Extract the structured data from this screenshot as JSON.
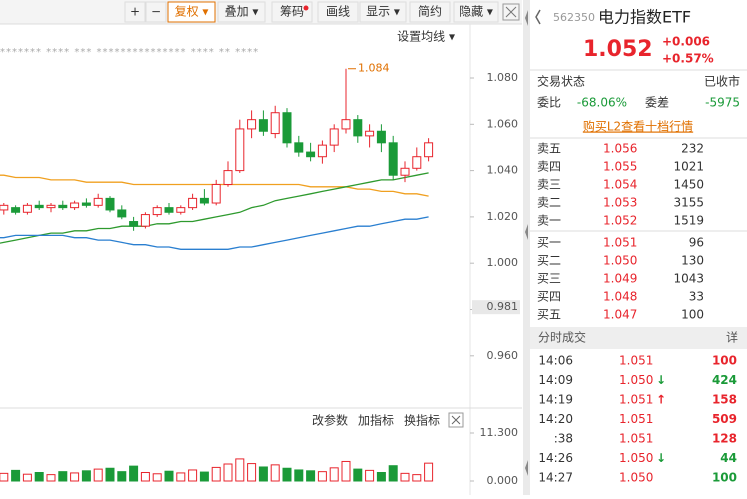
{
  "toolbar": {
    "buttons": [
      "+",
      "−",
      "复权 ▾",
      "叠加 ▾",
      "筹码",
      "画线",
      "显示 ▾",
      "简约",
      "隐藏 ▾"
    ]
  },
  "chart_data": {
    "type": "candlestick",
    "ma_menu": "设置均线 ▾",
    "event_markers": "******* **** *** *************** **** ** ****",
    "ylim": [
      0.951,
      1.089
    ],
    "yticks": [
      {
        "value": 1.08,
        "label": "1.080"
      },
      {
        "value": 1.06,
        "label": "1.060"
      },
      {
        "value": 1.04,
        "label": "1.040"
      },
      {
        "value": 1.02,
        "label": "1.020"
      },
      {
        "value": 1.0,
        "label": "1.000"
      },
      {
        "value": 0.98,
        "label": "0.980"
      },
      {
        "value": 0.96,
        "label": "0.960"
      }
    ],
    "cursor_label": {
      "value": 0.981,
      "label": "0.981"
    },
    "high_marker": {
      "value": 1.084,
      "label": "1.084"
    },
    "up_color": "#e8242c",
    "down_color": "#1a9a38",
    "open": [
      1.024,
      1.023,
      1.024,
      1.022,
      1.025,
      1.024,
      1.025,
      1.024,
      1.026,
      1.025,
      1.028,
      1.023,
      1.018,
      1.016,
      1.021,
      1.024,
      1.022,
      1.024,
      1.028,
      1.026,
      1.034,
      1.04,
      1.058,
      1.062,
      1.056,
      1.065,
      1.052,
      1.048,
      1.046,
      1.051,
      1.058,
      1.062,
      1.055,
      1.057,
      1.052,
      1.038,
      1.041,
      1.046
    ],
    "high": [
      1.027,
      1.026,
      1.025,
      1.026,
      1.027,
      1.026,
      1.027,
      1.027,
      1.028,
      1.03,
      1.029,
      1.025,
      1.02,
      1.022,
      1.025,
      1.026,
      1.025,
      1.03,
      1.032,
      1.036,
      1.044,
      1.062,
      1.066,
      1.066,
      1.068,
      1.067,
      1.055,
      1.052,
      1.053,
      1.06,
      1.084,
      1.064,
      1.06,
      1.06,
      1.055,
      1.044,
      1.05,
      1.054
    ],
    "low": [
      1.021,
      1.021,
      1.021,
      1.021,
      1.023,
      1.022,
      1.023,
      1.023,
      1.024,
      1.024,
      1.022,
      1.019,
      1.014,
      1.015,
      1.02,
      1.021,
      1.021,
      1.023,
      1.025,
      1.025,
      1.033,
      1.039,
      1.054,
      1.055,
      1.054,
      1.05,
      1.046,
      1.044,
      1.043,
      1.048,
      1.056,
      1.052,
      1.05,
      1.048,
      1.036,
      1.035,
      1.04,
      1.044
    ],
    "close": [
      1.023,
      1.025,
      1.022,
      1.025,
      1.024,
      1.025,
      1.024,
      1.026,
      1.025,
      1.028,
      1.023,
      1.02,
      1.016,
      1.021,
      1.024,
      1.022,
      1.024,
      1.028,
      1.026,
      1.034,
      1.04,
      1.058,
      1.062,
      1.057,
      1.065,
      1.052,
      1.048,
      1.046,
      1.051,
      1.058,
      1.062,
      1.055,
      1.057,
      1.052,
      1.038,
      1.041,
      1.046,
      1.052
    ],
    "series": [
      {
        "color": "#f0a020",
        "values": [
          1.038,
          1.038,
          1.037,
          1.037,
          1.037,
          1.036,
          1.036,
          1.036,
          1.035,
          1.035,
          1.035,
          1.035,
          1.034,
          1.034,
          1.034,
          1.034,
          1.034,
          1.034,
          1.034,
          1.034,
          1.034,
          1.034,
          1.034,
          1.034,
          1.034,
          1.034,
          1.034,
          1.033,
          1.033,
          1.033,
          1.033,
          1.032,
          1.032,
          1.031,
          1.031,
          1.03,
          1.03,
          1.029
        ]
      },
      {
        "color": "#2e9a2e",
        "values": [
          1.008,
          1.009,
          1.01,
          1.011,
          1.012,
          1.013,
          1.013,
          1.014,
          1.014,
          1.015,
          1.015,
          1.016,
          1.016,
          1.016,
          1.017,
          1.017,
          1.018,
          1.018,
          1.019,
          1.02,
          1.021,
          1.022,
          1.024,
          1.025,
          1.027,
          1.028,
          1.029,
          1.03,
          1.031,
          1.032,
          1.033,
          1.034,
          1.035,
          1.036,
          1.036,
          1.037,
          1.038,
          1.039
        ]
      },
      {
        "color": "#2a7fd0",
        "values": [
          1.011,
          1.011,
          1.012,
          1.012,
          1.012,
          1.012,
          1.012,
          1.011,
          1.011,
          1.01,
          1.01,
          1.009,
          1.008,
          1.008,
          1.007,
          1.007,
          1.006,
          1.006,
          1.006,
          1.006,
          1.006,
          1.007,
          1.007,
          1.008,
          1.009,
          1.01,
          1.011,
          1.012,
          1.013,
          1.014,
          1.015,
          1.016,
          1.016,
          1.017,
          1.018,
          1.019,
          1.019,
          1.02
        ]
      }
    ],
    "volume": {
      "ylim": [
        0,
        11.3
      ],
      "yticks": [
        {
          "value": 11.3,
          "label": "11.300"
        },
        {
          "value": 0,
          "label": "0.000"
        }
      ],
      "values": [
        2.1,
        1.8,
        2.5,
        1.6,
        2.0,
        1.5,
        2.2,
        1.9,
        2.4,
        2.8,
        3.0,
        2.2,
        3.5,
        2.0,
        1.7,
        2.3,
        1.9,
        2.6,
        2.1,
        3.2,
        4.0,
        5.2,
        4.1,
        3.3,
        3.8,
        3.0,
        2.6,
        2.4,
        2.2,
        3.1,
        4.6,
        2.8,
        2.5,
        2.0,
        3.6,
        1.8,
        1.5,
        4.2
      ]
    },
    "indicator_buttons": [
      "改参数",
      "加指标",
      "换指标"
    ]
  },
  "quote": {
    "code": "562350",
    "name": "电力指数ETF",
    "price": "1.052",
    "change": "+0.006",
    "change_pct": "+0.57%",
    "status_label": "交易状态",
    "status": "已收市",
    "ratio_label": "委比",
    "ratio": "-68.06%",
    "diff_label": "委差",
    "diff": "-5975",
    "l2_link": "购买L2查看十档行情",
    "asks": [
      {
        "label": "卖五",
        "price": "1.056",
        "volume": "232"
      },
      {
        "label": "卖四",
        "price": "1.055",
        "volume": "1021"
      },
      {
        "label": "卖三",
        "price": "1.054",
        "volume": "1450"
      },
      {
        "label": "卖二",
        "price": "1.053",
        "volume": "3155"
      },
      {
        "label": "卖一",
        "price": "1.052",
        "volume": "1519"
      }
    ],
    "bids": [
      {
        "label": "买一",
        "price": "1.051",
        "volume": "96"
      },
      {
        "label": "买二",
        "price": "1.050",
        "volume": "130"
      },
      {
        "label": "买三",
        "price": "1.049",
        "volume": "1043"
      },
      {
        "label": "买四",
        "price": "1.048",
        "volume": "33"
      },
      {
        "label": "买五",
        "price": "1.047",
        "volume": "100"
      }
    ],
    "trades_title": "分时成交",
    "trades_detail": "详",
    "trades": [
      {
        "time": "14:06",
        "price": "1.051",
        "volume": "100",
        "color": "#e8242c"
      },
      {
        "time": "14:09",
        "price": "1.050",
        "arrow": "↓",
        "volume": "424",
        "color": "#1a9a38"
      },
      {
        "time": "14:19",
        "price": "1.051",
        "arrow": "↑",
        "volume": "158",
        "color": "#e8242c"
      },
      {
        "time": "14:20",
        "price": "1.051",
        "volume": "509",
        "color": "#e8242c"
      },
      {
        "time": ":38",
        "price": "1.051",
        "volume": "128",
        "color": "#e8242c"
      },
      {
        "time": "14:26",
        "price": "1.050",
        "arrow": "↓",
        "volume": "44",
        "color": "#1a9a38"
      },
      {
        "time": "14:27",
        "price": "1.050",
        "volume": "100",
        "color": "#1a9a38"
      }
    ]
  }
}
